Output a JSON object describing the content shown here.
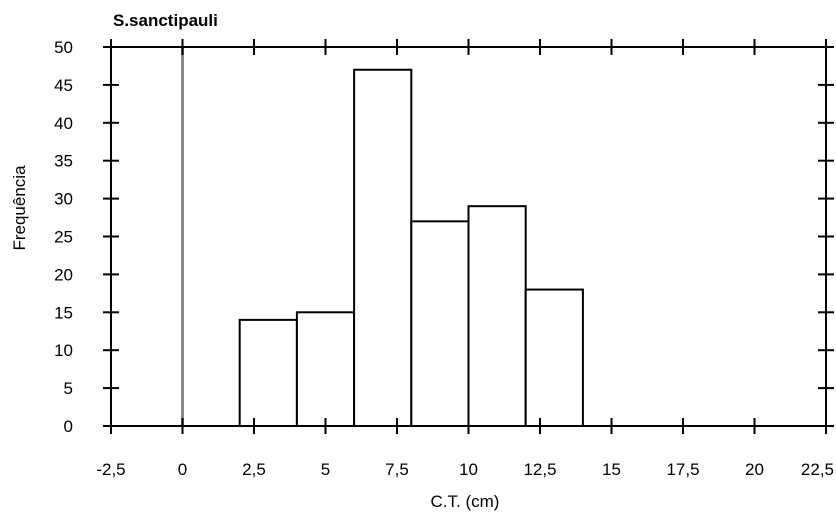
{
  "chart_data": {
    "type": "bar",
    "title": "S.sanctipauli",
    "xlabel": "C.T. (cm)",
    "ylabel": "Frequência",
    "xlim": [
      -2.5,
      22.5
    ],
    "ylim": [
      0,
      50
    ],
    "x_ticks": [
      -2.5,
      0,
      2.5,
      5,
      7.5,
      10,
      12.5,
      15,
      17.5,
      20,
      22.5
    ],
    "x_tick_labels": [
      "-2,5",
      "0",
      "2,5",
      "5",
      "7,5",
      "10",
      "12,5",
      "15",
      "17,5",
      "20",
      "22,5"
    ],
    "y_ticks": [
      0,
      5,
      10,
      15,
      20,
      25,
      30,
      35,
      40,
      45,
      50
    ],
    "y_tick_labels": [
      "0",
      "5",
      "10",
      "15",
      "20",
      "25",
      "30",
      "35",
      "40",
      "45",
      "50"
    ],
    "bins": [
      {
        "x0": 2.0,
        "x1": 4.0,
        "value": 14
      },
      {
        "x0": 4.0,
        "x1": 6.0,
        "value": 15
      },
      {
        "x0": 6.0,
        "x1": 8.0,
        "value": 47
      },
      {
        "x0": 8.0,
        "x1": 10.0,
        "value": 27
      },
      {
        "x0": 10.0,
        "x1": 12.0,
        "value": 29
      },
      {
        "x0": 12.0,
        "x1": 14.0,
        "value": 18
      }
    ],
    "reference_line_x": 0,
    "grid": false,
    "colors": {
      "bar_fill": "#ffffff",
      "bar_stroke": "#000000",
      "axis": "#000000",
      "reference_line": "#888888"
    }
  }
}
